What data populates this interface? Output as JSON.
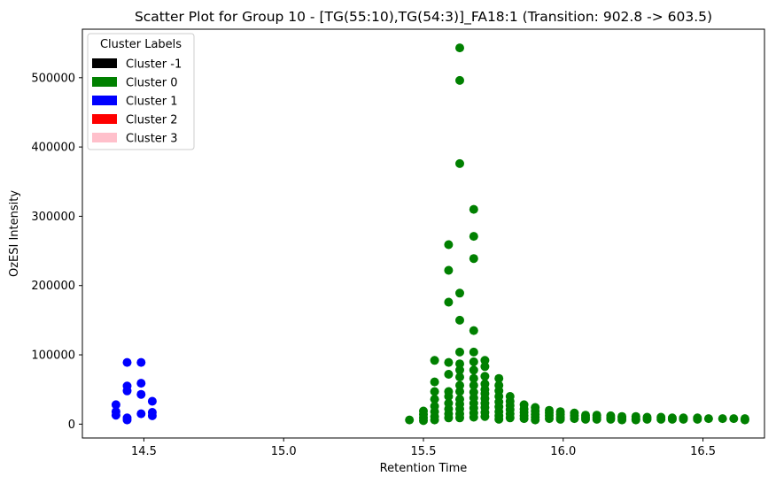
{
  "chart_data": {
    "type": "scatter",
    "title": "Scatter Plot for Group 10 - [TG(55:10),TG(54:3)]_FA18:1 (Transition: 902.8 -> 603.5)",
    "xlabel": "Retention Time",
    "ylabel": "OzESI Intensity",
    "xlim": [
      14.28,
      16.72
    ],
    "ylim": [
      -20000,
      570000
    ],
    "x_ticks": [
      14.5,
      15.0,
      15.5,
      16.0,
      16.5
    ],
    "x_tick_labels": [
      "14.5",
      "15.0",
      "15.5",
      "16.0",
      "16.5"
    ],
    "y_ticks": [
      0,
      100000,
      200000,
      300000,
      400000,
      500000
    ],
    "y_tick_labels": [
      "0",
      "100000",
      "200000",
      "300000",
      "400000",
      "500000"
    ],
    "grid": false,
    "legend": {
      "title": "Cluster Labels",
      "placement": "top-left",
      "entries": [
        {
          "label": "Cluster -1",
          "color": "#000000"
        },
        {
          "label": "Cluster 0",
          "color": "#008000"
        },
        {
          "label": "Cluster 1",
          "color": "#0000ff"
        },
        {
          "label": "Cluster 2",
          "color": "#ff0000"
        },
        {
          "label": "Cluster 3",
          "color": "#ffc0cb"
        }
      ]
    },
    "series": [
      {
        "cluster": "Cluster 1",
        "color": "#0000ff",
        "points": [
          [
            14.4,
            28000
          ],
          [
            14.4,
            18000
          ],
          [
            14.4,
            13000
          ],
          [
            14.44,
            89000
          ],
          [
            14.44,
            55000
          ],
          [
            14.44,
            48000
          ],
          [
            14.44,
            9000
          ],
          [
            14.44,
            6000
          ],
          [
            14.49,
            89000
          ],
          [
            14.49,
            59000
          ],
          [
            14.49,
            43000
          ],
          [
            14.49,
            15000
          ],
          [
            14.53,
            33000
          ],
          [
            14.53,
            17000
          ],
          [
            14.53,
            12000
          ]
        ]
      },
      {
        "cluster": "Cluster 0",
        "color": "#008000",
        "points": [
          [
            15.45,
            6000
          ],
          [
            15.5,
            19000
          ],
          [
            15.5,
            14000
          ],
          [
            15.5,
            9000
          ],
          [
            15.5,
            5000
          ],
          [
            15.54,
            92000
          ],
          [
            15.54,
            61000
          ],
          [
            15.54,
            47000
          ],
          [
            15.54,
            36000
          ],
          [
            15.54,
            26000
          ],
          [
            15.54,
            18000
          ],
          [
            15.54,
            11000
          ],
          [
            15.54,
            6000
          ],
          [
            15.59,
            259000
          ],
          [
            15.59,
            222000
          ],
          [
            15.59,
            176000
          ],
          [
            15.59,
            89000
          ],
          [
            15.59,
            72000
          ],
          [
            15.59,
            47000
          ],
          [
            15.59,
            40000
          ],
          [
            15.59,
            30000
          ],
          [
            15.59,
            22000
          ],
          [
            15.59,
            15000
          ],
          [
            15.59,
            9000
          ],
          [
            15.63,
            543000
          ],
          [
            15.63,
            496000
          ],
          [
            15.63,
            376000
          ],
          [
            15.63,
            189000
          ],
          [
            15.63,
            150000
          ],
          [
            15.63,
            104000
          ],
          [
            15.63,
            87000
          ],
          [
            15.63,
            78000
          ],
          [
            15.63,
            68000
          ],
          [
            15.63,
            56000
          ],
          [
            15.63,
            47000
          ],
          [
            15.63,
            36000
          ],
          [
            15.63,
            29000
          ],
          [
            15.63,
            22000
          ],
          [
            15.63,
            15000
          ],
          [
            15.63,
            9000
          ],
          [
            15.68,
            310000
          ],
          [
            15.68,
            271000
          ],
          [
            15.68,
            239000
          ],
          [
            15.68,
            135000
          ],
          [
            15.68,
            104000
          ],
          [
            15.68,
            90000
          ],
          [
            15.68,
            78000
          ],
          [
            15.68,
            66000
          ],
          [
            15.68,
            56000
          ],
          [
            15.68,
            46000
          ],
          [
            15.68,
            38000
          ],
          [
            15.68,
            30000
          ],
          [
            15.68,
            23000
          ],
          [
            15.68,
            16000
          ],
          [
            15.68,
            10000
          ],
          [
            15.72,
            92000
          ],
          [
            15.72,
            83000
          ],
          [
            15.72,
            69000
          ],
          [
            15.72,
            58000
          ],
          [
            15.72,
            50000
          ],
          [
            15.72,
            44000
          ],
          [
            15.72,
            37000
          ],
          [
            15.72,
            30000
          ],
          [
            15.72,
            24000
          ],
          [
            15.72,
            17000
          ],
          [
            15.72,
            11000
          ],
          [
            15.77,
            66000
          ],
          [
            15.77,
            56000
          ],
          [
            15.77,
            48000
          ],
          [
            15.77,
            40000
          ],
          [
            15.77,
            32000
          ],
          [
            15.77,
            25000
          ],
          [
            15.77,
            18000
          ],
          [
            15.77,
            12000
          ],
          [
            15.77,
            7000
          ],
          [
            15.81,
            40000
          ],
          [
            15.81,
            33000
          ],
          [
            15.81,
            27000
          ],
          [
            15.81,
            21000
          ],
          [
            15.81,
            15000
          ],
          [
            15.81,
            9000
          ],
          [
            15.86,
            28000
          ],
          [
            15.86,
            22000
          ],
          [
            15.86,
            17000
          ],
          [
            15.86,
            12000
          ],
          [
            15.86,
            8000
          ],
          [
            15.9,
            24000
          ],
          [
            15.9,
            19000
          ],
          [
            15.9,
            14000
          ],
          [
            15.9,
            10000
          ],
          [
            15.9,
            6000
          ],
          [
            15.95,
            20000
          ],
          [
            15.95,
            16000
          ],
          [
            15.95,
            12000
          ],
          [
            15.95,
            8000
          ],
          [
            15.99,
            18000
          ],
          [
            15.99,
            14000
          ],
          [
            15.99,
            10000
          ],
          [
            15.99,
            7000
          ],
          [
            16.04,
            16000
          ],
          [
            16.04,
            12000
          ],
          [
            16.04,
            8000
          ],
          [
            16.08,
            13000
          ],
          [
            16.08,
            10000
          ],
          [
            16.08,
            7000
          ],
          [
            16.12,
            13000
          ],
          [
            16.12,
            10000
          ],
          [
            16.12,
            7000
          ],
          [
            16.17,
            12000
          ],
          [
            16.17,
            9000
          ],
          [
            16.17,
            7000
          ],
          [
            16.21,
            11000
          ],
          [
            16.21,
            9000
          ],
          [
            16.21,
            6000
          ],
          [
            16.26,
            11000
          ],
          [
            16.26,
            8000
          ],
          [
            16.26,
            6000
          ],
          [
            16.3,
            10000
          ],
          [
            16.3,
            7000
          ],
          [
            16.35,
            10000
          ],
          [
            16.35,
            7000
          ],
          [
            16.39,
            9000
          ],
          [
            16.39,
            7000
          ],
          [
            16.43,
            9000
          ],
          [
            16.43,
            7000
          ],
          [
            16.48,
            9000
          ],
          [
            16.48,
            7000
          ],
          [
            16.52,
            8000
          ],
          [
            16.57,
            8000
          ],
          [
            16.61,
            8000
          ],
          [
            16.65,
            8000
          ],
          [
            16.65,
            6000
          ]
        ]
      }
    ]
  }
}
